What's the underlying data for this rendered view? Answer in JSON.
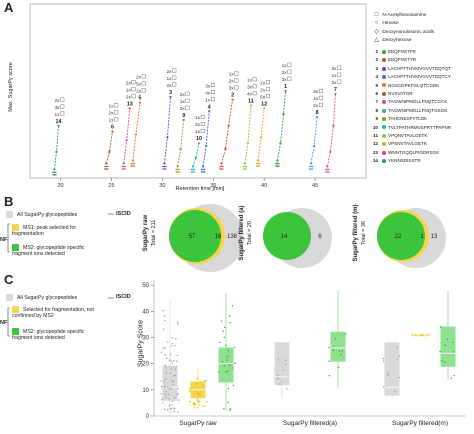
{
  "panels": {
    "a": "A",
    "b": "B",
    "c": "C"
  },
  "colors": {
    "gray": "#d9d9d9",
    "yellow": "#f5d54a",
    "green": "#3cc43c",
    "light_green": "#8fe08f",
    "peptides": [
      "#2e9e3e",
      "#d64b2b",
      "#7a3fb0",
      "#3c6fd8",
      "#d87a2a",
      "#a05a2c",
      "#e64aa0",
      "#4a9ad8",
      "#9b9b2b",
      "#2ab6b6",
      "#7bd62a",
      "#e6a02a",
      "#d84a6a",
      "#3a8a8a"
    ]
  },
  "panel_a": {
    "glycan_legend": [
      {
        "symbol": "□",
        "label": "N-Acetylhexosamine"
      },
      {
        "symbol": "○",
        "label": "Hexose"
      },
      {
        "symbol": "◇",
        "label": "Deoxynonulosonic acids"
      },
      {
        "symbol": "△",
        "label": "Deoxyhexose"
      }
    ],
    "peptides": [
      {
        "num": "1",
        "seq": "EEQFNSTFR"
      },
      {
        "num": "2",
        "seq": "EEQFNSTYR"
      },
      {
        "num": "3",
        "seq": "LACHPTTHVMVGVVTDQTQT"
      },
      {
        "num": "4",
        "seq": "LACHPTTHVMVGVVTDQTCY"
      },
      {
        "num": "5",
        "seq": "NGSCDPKFGLQTCGDK"
      },
      {
        "num": "6",
        "seq": "NVSVATGR"
      },
      {
        "num": "7",
        "seq": "TAGWNIPMGLLFNQTCGCK"
      },
      {
        "num": "8",
        "seq": "TAGWNIPMGLLFNQTGSGK"
      },
      {
        "num": "9",
        "seq": "TAHCNESFYTLDK"
      },
      {
        "num": "10",
        "seq": "TVLTPATHRMVSPRTTPAPNR"
      },
      {
        "num": "11",
        "seq": "VPQNVTAVLGETK"
      },
      {
        "num": "12",
        "seq": "VPSNVTAVLGETK"
      },
      {
        "num": "13",
        "seq": "WNNTGQQLPIGDRSGK"
      },
      {
        "num": "14",
        "seq": "YKNNSDISSTR"
      }
    ],
    "ylabel": "Max. SugarPy score",
    "xlabel": "Retention time [min]",
    "composition_labels": [
      "3x",
      "2x",
      "1x",
      "3x",
      "2x",
      "1x",
      "2x",
      "1x",
      "2x",
      "1x",
      "4x",
      "3x",
      "1x",
      "5x",
      "2x",
      "1x",
      "2x",
      "1x",
      "2x",
      "1x"
    ]
  },
  "panel_b": {
    "legend": {
      "all_label": "All SugarPy glycopeptides",
      "iscid": "ISCID",
      "ms1_label": "MS1: peak selected for fragmentation",
      "ms2_label": "MS2: glycopeptide specific fragment ions detected",
      "nf": "NF"
    },
    "venns": [
      {
        "title": "SugarPy raw",
        "total": "Total = 211",
        "green": "57",
        "yellow": "16",
        "gray": "138"
      },
      {
        "title": "SugarPy filtered (a)",
        "total": "Total = 20",
        "green": "14",
        "yellow": "",
        "gray": "6"
      },
      {
        "title": "SugarPy filtered (m)",
        "total": "Total = 36",
        "green": "22",
        "yellow": "1",
        "gray": "13"
      }
    ]
  },
  "panel_c": {
    "legend": {
      "all_label": "All SugarPy glycopeptides",
      "iscid": "ISCID",
      "sel_label": "Selected for fragmentation, not confirmed by MS2",
      "ms2_label": "MS2: glycopeptide specific fragment ions detected",
      "nf": "NF"
    }
  },
  "chart_data": [
    {
      "type": "line",
      "title": "",
      "xlabel": "Retention time [min]",
      "ylabel": "Max. SugarPy score",
      "xlim": [
        17,
        50
      ],
      "xticks": [
        20,
        25,
        30,
        35,
        40,
        45
      ],
      "series": [
        {
          "name": "EEQFNSTFR",
          "x": [
            41.3,
            41.6,
            41.9,
            42.1
          ],
          "y": [
            6,
            12,
            22,
            30
          ]
        },
        {
          "name": "EEQFNSTYR",
          "x": [
            35.8,
            36.2,
            36.5,
            36.9
          ],
          "y": [
            5,
            10,
            18,
            27
          ]
        },
        {
          "name": "LACHPTTHVMVGVVTDQTQT",
          "x": [
            30.2,
            30.5,
            30.8
          ],
          "y": [
            5,
            14,
            28
          ]
        },
        {
          "name": "LACHPTTHVMVGVVTDQTCY",
          "x": [
            34.0,
            34.3,
            34.6
          ],
          "y": [
            4,
            11,
            23
          ]
        },
        {
          "name": "NGSCDPKFGLQTCGDK",
          "x": [
            27.1,
            27.4,
            27.8
          ],
          "y": [
            6,
            15,
            26
          ]
        },
        {
          "name": "NVSVATGR",
          "x": [
            24.5,
            24.8,
            25.1
          ],
          "y": [
            5,
            9,
            16
          ]
        },
        {
          "name": "TAGWNIPMGLLFNQTCGCK",
          "x": [
            46.2,
            46.5,
            46.8,
            47.0
          ],
          "y": [
            4,
            9,
            18,
            29
          ]
        },
        {
          "name": "TAGWNIPMGLLFNQTGSGK",
          "x": [
            44.6,
            44.9,
            45.2
          ],
          "y": [
            5,
            11,
            21
          ]
        },
        {
          "name": "TAHCNESFYTLDK",
          "x": [
            31.5,
            31.8,
            32.1
          ],
          "y": [
            4,
            10,
            20
          ]
        },
        {
          "name": "TVLTPATHRMVSPRTTPAPNR",
          "x": [
            33.0,
            33.3,
            33.6
          ],
          "y": [
            4,
            7,
            12
          ]
        },
        {
          "name": "VPQNVTAVLGETK",
          "x": [
            38.1,
            38.4,
            38.7
          ],
          "y": [
            5,
            12,
            25
          ]
        },
        {
          "name": "VPSNVTAVLGETK",
          "x": [
            39.4,
            39.7,
            40.0
          ],
          "y": [
            6,
            14,
            24
          ]
        },
        {
          "name": "WNNTGQQLPIGDRSGK",
          "x": [
            26.2,
            26.5,
            26.8
          ],
          "y": [
            5,
            13,
            24
          ]
        },
        {
          "name": "YKNNSDISSTR",
          "x": [
            19.4,
            19.6,
            19.8
          ],
          "y": [
            3,
            9,
            18
          ]
        }
      ]
    },
    {
      "type": "box",
      "title": "",
      "xlabel": "",
      "ylabel": "SugarPy Score",
      "ylim": [
        0,
        52
      ],
      "yticks": [
        0,
        10,
        20,
        30,
        40,
        50
      ],
      "groups": [
        {
          "name": "SugarPy raw",
          "boxes": [
            {
              "color": "gray",
              "min": 1,
              "q1": 6,
              "median": 11,
              "q3": 19,
              "max": 44
            },
            {
              "color": "yellow",
              "min": 3,
              "q1": 7,
              "median": 10,
              "q3": 13,
              "max": 18
            },
            {
              "color": "green",
              "min": 2,
              "q1": 13,
              "median": 20,
              "q3": 26,
              "max": 47
            }
          ]
        },
        {
          "name": "SugarPy filtered(a)",
          "boxes": [
            {
              "color": "gray",
              "min": 7,
              "q1": 12,
              "median": 15,
              "q3": 28,
              "max": 28
            },
            {
              "color": "green",
              "min": 11,
              "q1": 21,
              "median": 26,
              "q3": 32,
              "max": 48
            }
          ]
        },
        {
          "name": "SugarPy filtered(m)",
          "boxes": [
            {
              "color": "gray",
              "min": 7,
              "q1": 8,
              "median": 11,
              "q3": 28,
              "max": 28
            },
            {
              "color": "yellow",
              "min": 31,
              "q1": 31,
              "median": 31,
              "q3": 31,
              "max": 31
            },
            {
              "color": "green",
              "min": 14,
              "q1": 19,
              "median": 24,
              "q3": 34,
              "max": 48
            }
          ]
        }
      ]
    }
  ]
}
